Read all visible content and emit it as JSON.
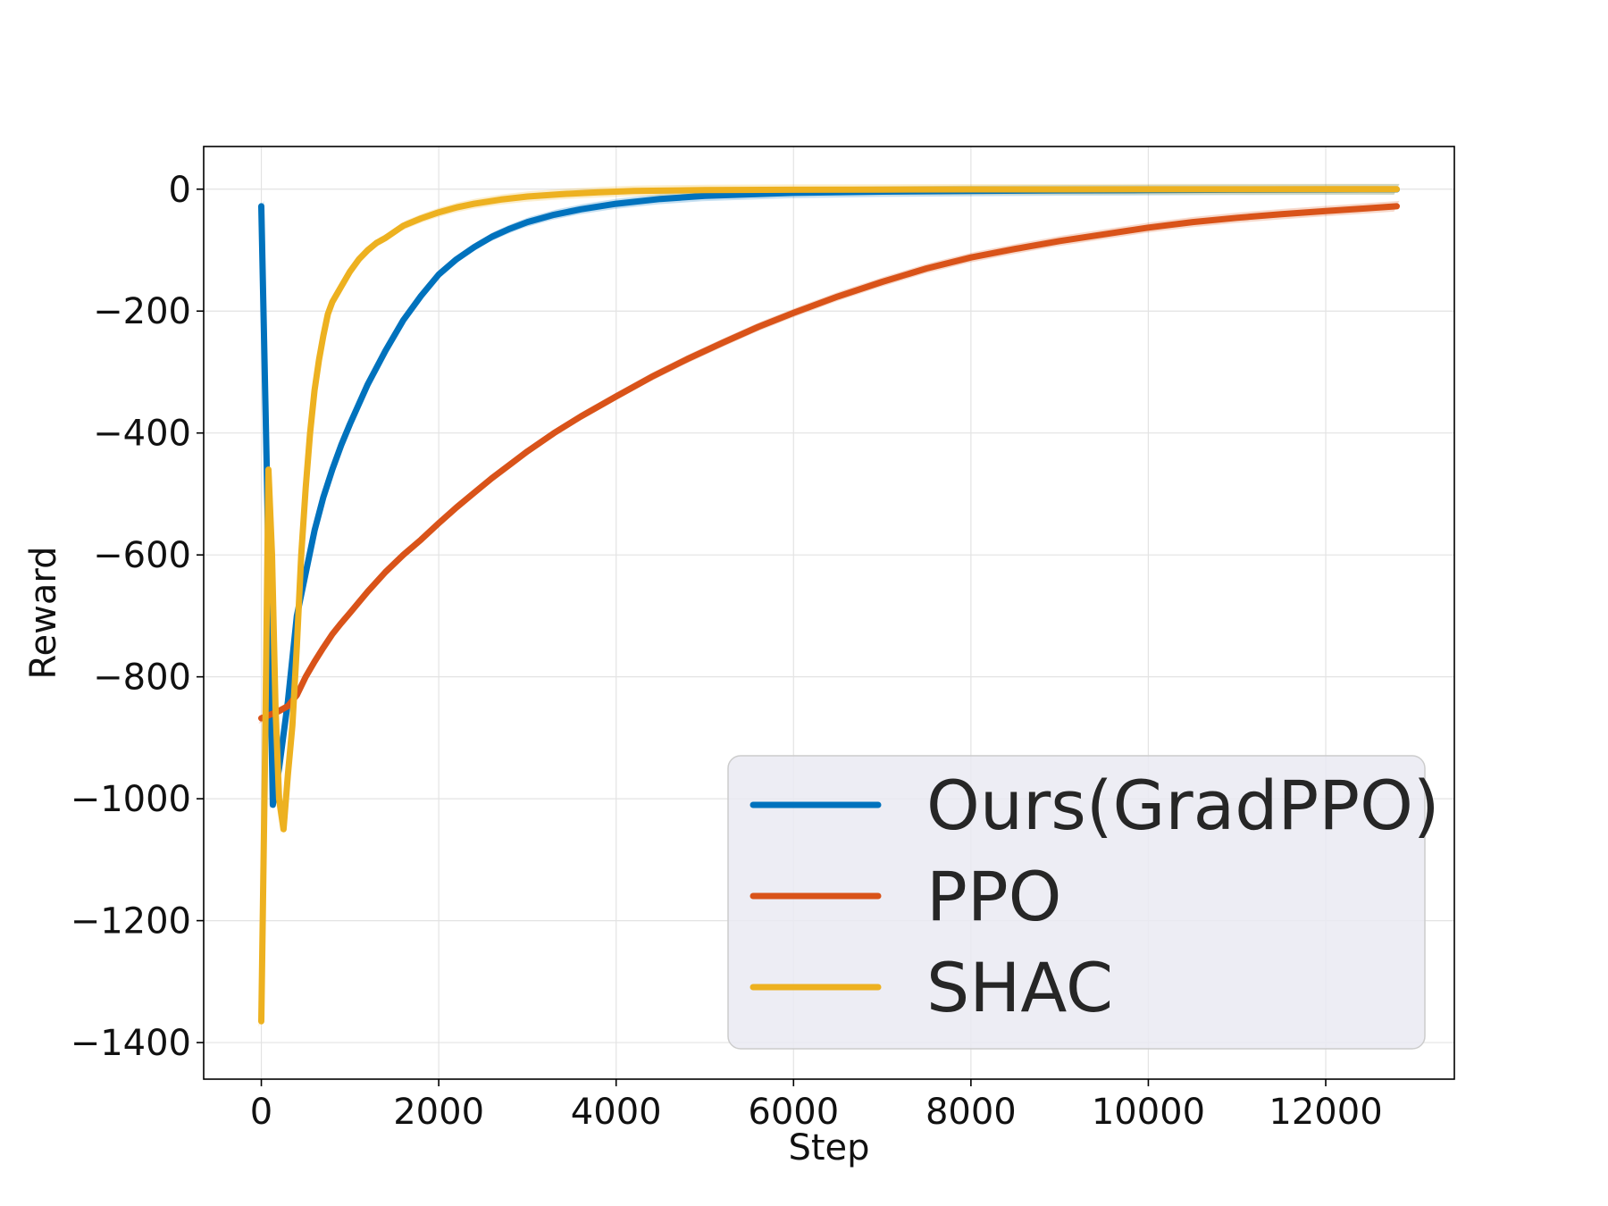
{
  "chart_data": {
    "type": "line",
    "xlabel": "Step",
    "ylabel": "Reward",
    "xlim": [
      -650,
      13450
    ],
    "ylim": [
      -1460,
      70
    ],
    "xticks": [
      0,
      2000,
      4000,
      6000,
      8000,
      10000,
      12000
    ],
    "yticks": [
      0,
      -200,
      -400,
      -600,
      -800,
      -1000,
      -1200,
      -1400
    ],
    "xtick_labels": [
      "0",
      "2000",
      "4000",
      "6000",
      "8000",
      "10000",
      "12000"
    ],
    "ytick_labels": [
      "0",
      "−200",
      "−400",
      "−600",
      "−800",
      "−1000",
      "−1200",
      "−1400"
    ],
    "grid": true,
    "legend_position": "lower-right",
    "series": [
      {
        "name": "Ours(GradPPO)",
        "color": "#0072bd",
        "x": [
          0,
          60,
          130,
          200,
          300,
          400,
          500,
          600,
          700,
          800,
          900,
          1000,
          1200,
          1400,
          1600,
          1800,
          2000,
          2200,
          2400,
          2600,
          2800,
          3000,
          3300,
          3600,
          4000,
          4500,
          5000,
          6000,
          7000,
          8000,
          9000,
          10000,
          11000,
          12000,
          12800
        ],
        "y": [
          -28,
          -450,
          -1010,
          -950,
          -840,
          -700,
          -630,
          -560,
          -505,
          -460,
          -420,
          -385,
          -320,
          -265,
          -215,
          -175,
          -140,
          -115,
          -95,
          -78,
          -65,
          -54,
          -42,
          -33,
          -24,
          -16,
          -11,
          -6,
          -4,
          -3,
          -2,
          -1.5,
          -1,
          -0.5,
          -0.3
        ]
      },
      {
        "name": "PPO",
        "color": "#d95319",
        "x": [
          0,
          100,
          200,
          300,
          400,
          500,
          600,
          700,
          800,
          900,
          1000,
          1200,
          1400,
          1600,
          1800,
          2000,
          2200,
          2400,
          2600,
          2800,
          3000,
          3300,
          3600,
          4000,
          4400,
          4800,
          5200,
          5600,
          6000,
          6500,
          7000,
          7500,
          8000,
          8500,
          9000,
          9500,
          10000,
          10500,
          11000,
          11500,
          12000,
          12400,
          12800
        ],
        "y": [
          -868,
          -862,
          -856,
          -848,
          -830,
          -800,
          -775,
          -752,
          -730,
          -712,
          -695,
          -660,
          -628,
          -600,
          -575,
          -548,
          -522,
          -498,
          -474,
          -452,
          -430,
          -400,
          -373,
          -340,
          -308,
          -279,
          -252,
          -226,
          -203,
          -176,
          -152,
          -130,
          -112,
          -98,
          -85,
          -74,
          -63,
          -54,
          -47,
          -41,
          -36,
          -32,
          -28
        ]
      },
      {
        "name": "SHAC",
        "color": "#edb120",
        "x": [
          0,
          40,
          80,
          120,
          160,
          200,
          250,
          300,
          350,
          400,
          450,
          500,
          550,
          600,
          650,
          700,
          750,
          800,
          900,
          1000,
          1100,
          1200,
          1300,
          1400,
          1600,
          1800,
          2000,
          2200,
          2400,
          2700,
          3000,
          3400,
          3800,
          4200,
          5000,
          6000,
          7000,
          8000,
          9000,
          10000,
          11000,
          12000,
          12800
        ],
        "y": [
          -1365,
          -950,
          -460,
          -600,
          -850,
          -1000,
          -1050,
          -960,
          -880,
          -750,
          -600,
          -490,
          -400,
          -330,
          -280,
          -240,
          -205,
          -185,
          -160,
          -135,
          -115,
          -100,
          -88,
          -80,
          -60,
          -48,
          -38,
          -30,
          -24,
          -17,
          -12,
          -8,
          -5,
          -3,
          -1.5,
          -1,
          -0.6,
          -0.4,
          -0.3,
          -0.2,
          -0.15,
          -0.1,
          -0.1
        ]
      }
    ]
  }
}
